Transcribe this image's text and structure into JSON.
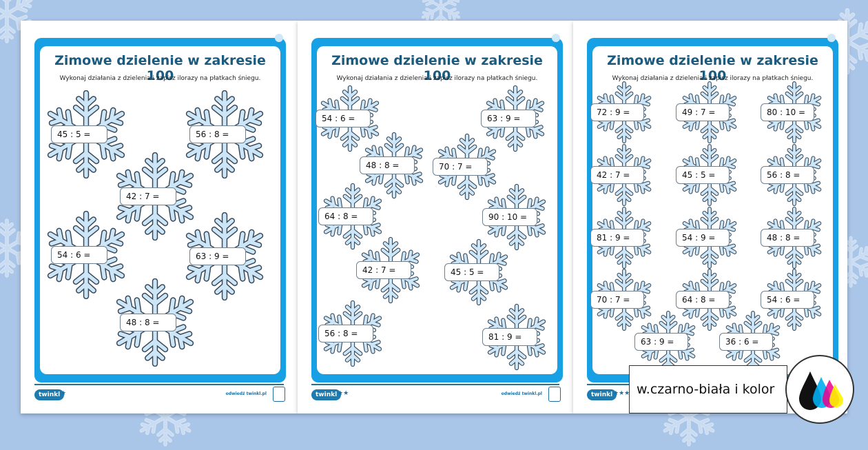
{
  "title": "Zimowe dzielenie w zakresie 100",
  "subtitle": "Wykonaj działania z dzielenia i zapisz ilorazy na płatkach śniegu.",
  "footer": {
    "logo": "twinkl",
    "url": "odwiedź twinkl.pl"
  },
  "pages": [
    {
      "stars": "★",
      "equations": [
        "45 : 5 =",
        "56 : 8 =",
        "42 : 7 =",
        "54 : 6 =",
        "63 : 9 =",
        "48 : 8 ="
      ]
    },
    {
      "stars": "★★",
      "equations": [
        "54 : 6 =",
        "63 : 9 =",
        "48 : 8 =",
        "70 : 7 =",
        "64 : 8 =",
        "90 : 10 =",
        "42 : 7 =",
        "45 : 5 =",
        "56 : 8 =",
        "81 : 9 ="
      ]
    },
    {
      "stars": "★★★",
      "equations": [
        "72 : 9 =",
        "49 : 7 =",
        "80 : 10 =",
        "42 : 7 =",
        "45 : 5 =",
        "56 : 8 =",
        "81 : 9 =",
        "54 : 9 =",
        "48 : 8 =",
        "70 : 7 =",
        "64 : 8 =",
        "54 : 6 =",
        "63 : 9 =",
        "36 : 6 ="
      ]
    }
  ],
  "badge": {
    "label": "w.czarno-biała i kolor",
    "icon": "ink-drops-icon"
  },
  "colors": {
    "frame": "#17a0e3",
    "title": "#1c5a7e",
    "background": "#a9c5e8"
  }
}
